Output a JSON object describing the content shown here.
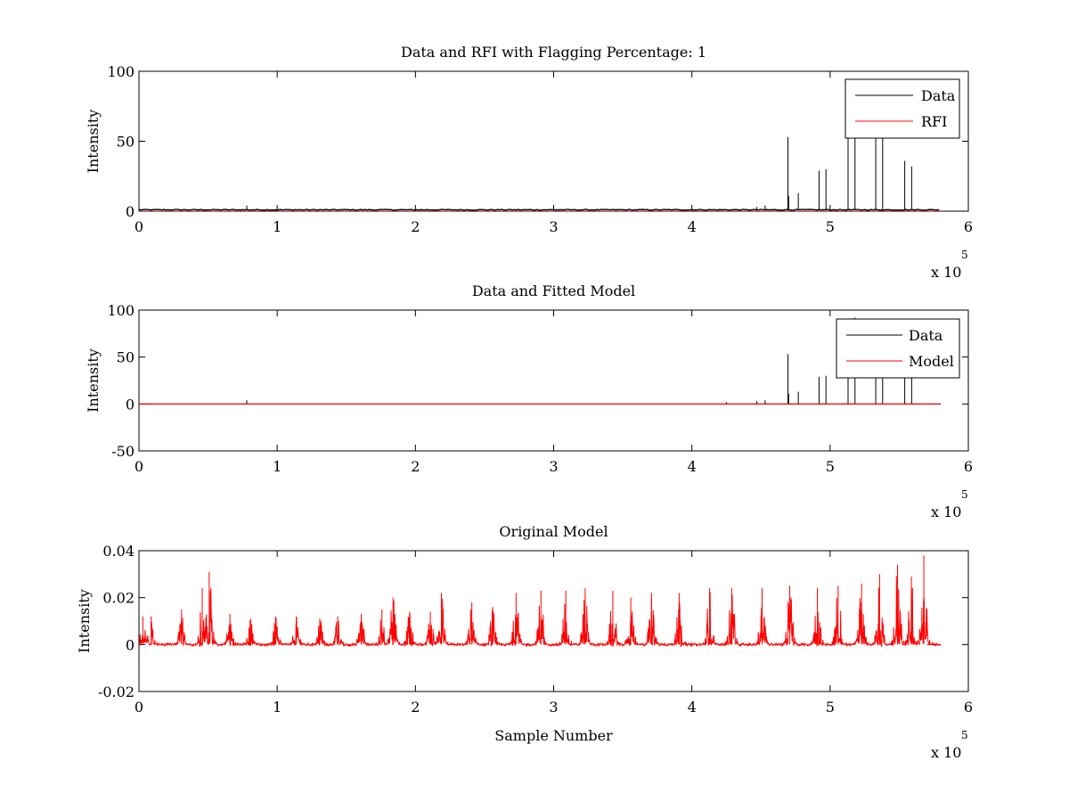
{
  "figure": {
    "background": "#ffffff",
    "data_color": "#000000",
    "rfi_color": "#ff0000"
  },
  "chart_data": [
    {
      "type": "line",
      "title": "Data and RFI with Flagging Percentage: 1",
      "xlabel": "",
      "ylabel": "Intensity",
      "xlim": [
        0,
        600000
      ],
      "ylim": [
        0,
        100
      ],
      "x_ticks": [
        "0",
        "1",
        "2",
        "3",
        "4",
        "5",
        "6"
      ],
      "y_ticks": [
        "0",
        "50",
        "100"
      ],
      "x_exponent": "x 10",
      "x_exponent_power": "5",
      "legend": [
        "Data",
        "RFI"
      ],
      "legend_position": "top-right",
      "grid": false,
      "baseline_end": 580000,
      "series": [
        {
          "name": "Data",
          "color": "#000000",
          "baseline": 1,
          "spikes": [
            {
              "x": 78000,
              "y": 4
            },
            {
              "x": 447000,
              "y": 3
            },
            {
              "x": 453000,
              "y": 4
            },
            {
              "x": 469500,
              "y": 53
            },
            {
              "x": 470000,
              "y": 11
            },
            {
              "x": 477000,
              "y": 13
            },
            {
              "x": 492000,
              "y": 29
            },
            {
              "x": 497000,
              "y": 30
            },
            {
              "x": 513000,
              "y": 55
            },
            {
              "x": 518000,
              "y": 92
            },
            {
              "x": 533000,
              "y": 88
            },
            {
              "x": 538000,
              "y": 55
            },
            {
              "x": 554000,
              "y": 36
            },
            {
              "x": 559000,
              "y": 32
            }
          ]
        },
        {
          "name": "RFI",
          "color": "#ff0000",
          "baseline": 0,
          "spikes": []
        }
      ]
    },
    {
      "type": "line",
      "title": "Data and Fitted Model",
      "xlabel": "",
      "ylabel": "Intensity",
      "xlim": [
        0,
        600000
      ],
      "ylim": [
        -50,
        100
      ],
      "x_ticks": [
        "0",
        "1",
        "2",
        "3",
        "4",
        "5",
        "6"
      ],
      "y_ticks": [
        "-50",
        "0",
        "50",
        "100"
      ],
      "x_exponent": "x 10",
      "x_exponent_power": "5",
      "legend": [
        "Data",
        "Model"
      ],
      "legend_position": "top-right",
      "grid": false,
      "baseline_end": 580000,
      "series": [
        {
          "name": "Data",
          "color": "#000000",
          "baseline": 0,
          "spikes": [
            {
              "x": 78000,
              "y": 4
            },
            {
              "x": 425000,
              "y": 2
            },
            {
              "x": 447000,
              "y": 3
            },
            {
              "x": 453000,
              "y": 4
            },
            {
              "x": 469500,
              "y": 53
            },
            {
              "x": 470000,
              "y": 11
            },
            {
              "x": 477000,
              "y": 13
            },
            {
              "x": 492000,
              "y": 29
            },
            {
              "x": 497000,
              "y": 30
            },
            {
              "x": 513000,
              "y": 55
            },
            {
              "x": 518000,
              "y": 92
            },
            {
              "x": 533000,
              "y": 88
            },
            {
              "x": 538000,
              "y": 55
            },
            {
              "x": 554000,
              "y": 36
            },
            {
              "x": 559000,
              "y": 32
            }
          ]
        },
        {
          "name": "Model",
          "color": "#ff0000",
          "baseline": 0,
          "spikes": []
        }
      ]
    },
    {
      "type": "line",
      "title": "Original Model",
      "xlabel": "Sample Number",
      "ylabel": "Intensity",
      "xlim": [
        0,
        600000
      ],
      "ylim": [
        -0.02,
        0.04
      ],
      "x_ticks": [
        "0",
        "1",
        "2",
        "3",
        "4",
        "5",
        "6"
      ],
      "y_ticks": [
        "-0.02",
        "0",
        "0.02",
        "0.04"
      ],
      "x_exponent": "x 10",
      "x_exponent_power": "5",
      "grid": false,
      "baseline_end": 580000,
      "series": [
        {
          "name": "",
          "color": "#ff0000",
          "baseline": 0,
          "clusters": [
            {
              "x": 2000,
              "peak": 0.012
            },
            {
              "x": 8000,
              "peak": 0.012
            },
            {
              "x": 30000,
              "peak": 0.015
            },
            {
              "x": 45000,
              "peak": 0.024
            },
            {
              "x": 50000,
              "peak": 0.031
            },
            {
              "x": 65000,
              "peak": 0.013
            },
            {
              "x": 80000,
              "peak": 0.011
            },
            {
              "x": 98000,
              "peak": 0.012
            },
            {
              "x": 113000,
              "peak": 0.012
            },
            {
              "x": 130000,
              "peak": 0.011
            },
            {
              "x": 143000,
              "peak": 0.012
            },
            {
              "x": 160000,
              "peak": 0.013
            },
            {
              "x": 175000,
              "peak": 0.015
            },
            {
              "x": 183000,
              "peak": 0.02
            },
            {
              "x": 195000,
              "peak": 0.014
            },
            {
              "x": 210000,
              "peak": 0.014
            },
            {
              "x": 218000,
              "peak": 0.022
            },
            {
              "x": 240000,
              "peak": 0.018
            },
            {
              "x": 255000,
              "peak": 0.016
            },
            {
              "x": 272000,
              "peak": 0.022
            },
            {
              "x": 290000,
              "peak": 0.023
            },
            {
              "x": 308000,
              "peak": 0.023
            },
            {
              "x": 322000,
              "peak": 0.024
            },
            {
              "x": 342000,
              "peak": 0.023
            },
            {
              "x": 355000,
              "peak": 0.02
            },
            {
              "x": 370000,
              "peak": 0.022
            },
            {
              "x": 390000,
              "peak": 0.022
            },
            {
              "x": 412000,
              "peak": 0.024
            },
            {
              "x": 428000,
              "peak": 0.024
            },
            {
              "x": 450000,
              "peak": 0.024
            },
            {
              "x": 470000,
              "peak": 0.025
            },
            {
              "x": 490000,
              "peak": 0.024
            },
            {
              "x": 505000,
              "peak": 0.025
            },
            {
              "x": 522000,
              "peak": 0.026
            },
            {
              "x": 535000,
              "peak": 0.03
            },
            {
              "x": 548000,
              "peak": 0.034
            },
            {
              "x": 558000,
              "peak": 0.029
            },
            {
              "x": 567000,
              "peak": 0.038
            }
          ]
        }
      ]
    }
  ]
}
